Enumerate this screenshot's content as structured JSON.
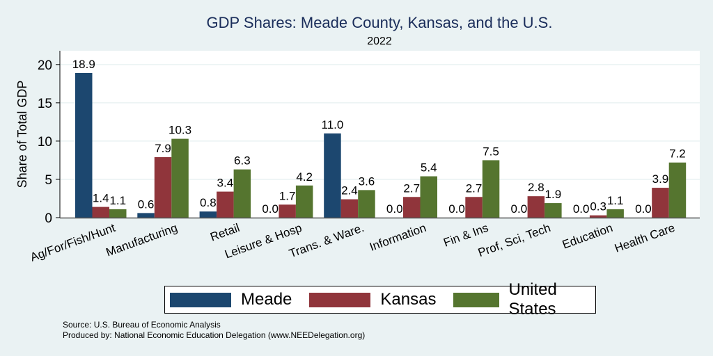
{
  "chart_data": {
    "type": "bar",
    "title": "GDP Shares: Meade County, Kansas, and the U.S.",
    "subtitle": "2022",
    "xlabel": "",
    "ylabel": "Share of Total GDP",
    "ylim": [
      0,
      21.8
    ],
    "yticks": [
      0,
      5,
      10,
      15,
      20
    ],
    "grid": true,
    "legend_position": "bottom",
    "categories": [
      "Ag/For/Fish/Hunt",
      "Manufacturing",
      "Retail",
      "Leisure & Hosp",
      "Trans. & Ware.",
      "Information",
      "Fin & Ins",
      "Prof, Sci, Tech",
      "Education",
      "Health Care"
    ],
    "series": [
      {
        "name": "Meade",
        "color": "#1c476f",
        "values": [
          18.9,
          0.6,
          0.8,
          0.0,
          11.0,
          0.0,
          0.0,
          0.0,
          0.0,
          0.0
        ]
      },
      {
        "name": "Kansas",
        "color": "#90353b",
        "values": [
          1.4,
          7.9,
          3.4,
          1.7,
          2.4,
          2.7,
          2.7,
          2.8,
          0.3,
          3.9
        ]
      },
      {
        "name": "United States",
        "color": "#55752f",
        "values": [
          1.1,
          10.3,
          6.3,
          4.2,
          3.6,
          5.4,
          7.5,
          1.9,
          1.1,
          7.2
        ]
      }
    ]
  },
  "footer": {
    "source": "Source: U.S. Bureau of Economic Analysis",
    "produced_by": "Produced by: National Economic Education Delegation (www.NEEDelegation.org)"
  }
}
